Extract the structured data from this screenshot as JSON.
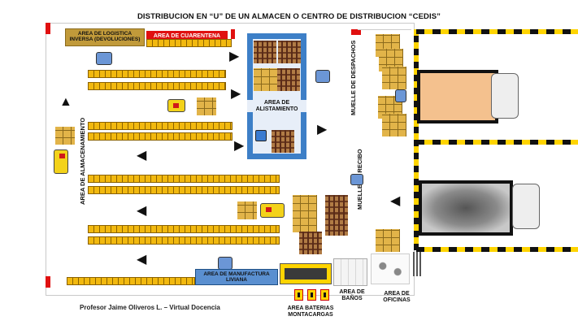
{
  "title": "DISTRIBUCION EN “U” DE UN ALMACEN O CENTRO DE DISTRIBUCION “CEDIS”",
  "zones": {
    "logistica_inversa": "AREA DE LOGISTICA INVERSA (DEVOLUCIONES)",
    "cuarentena": "AREA DE CUARENTENA",
    "alistamiento": "AREA DE ALISTAMIENTO",
    "almacenamiento": "AREA DE ALMACENAMIENTO",
    "muelle_despachos": "MUELLE DE DESPACHOS",
    "muelle_recibo": "MUELLE DE RECIBO",
    "manufactura": "AREA DE MANUFACTURA LIVIANA",
    "baterias": "AREA BATERIAS MONTACARGAS",
    "banos": "AREA DE BAÑOS",
    "oficinas": "AREA DE OFICINAS"
  },
  "footer": "Profesor Jaime Oliveros L. – Virtual Docencia",
  "colors": {
    "rack": "#f2b90f",
    "cuarentena": "#e01010",
    "alistamiento": "#3d7fc7",
    "manufactura": "#2d6fb3",
    "logistica": "#c19a3a"
  },
  "icons": {
    "forklift": "forklift-icon",
    "pallet": "pallet-icon",
    "truck": "truck-icon"
  }
}
